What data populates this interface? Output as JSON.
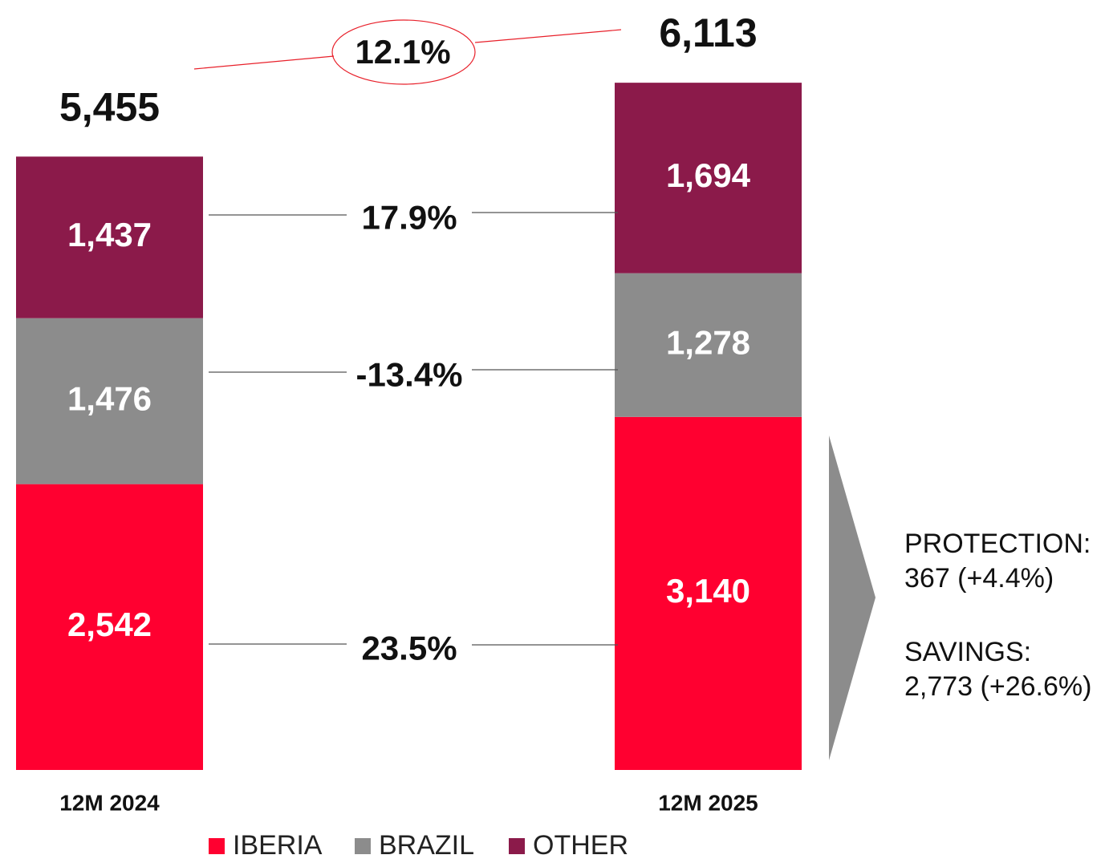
{
  "chart_data": {
    "type": "stacked_bar",
    "categories": [
      "12M 2024",
      "12M 2025"
    ],
    "series": [
      {
        "name": "IBERIA",
        "color": "#ff0030",
        "values": [
          2542,
          3140
        ],
        "value_labels": [
          "2,542",
          "3,140"
        ]
      },
      {
        "name": "BRAZIL",
        "color": "#8c8c8c",
        "values": [
          1476,
          1278
        ],
        "value_labels": [
          "1,476",
          "1,278"
        ]
      },
      {
        "name": "OTHER",
        "color": "#8b1a4a",
        "values": [
          1437,
          1694
        ],
        "value_labels": [
          "1,437",
          "1,694"
        ]
      }
    ],
    "totals": [
      5455,
      6113
    ],
    "total_labels": [
      "5,455",
      "6,113"
    ],
    "total_growth": "12.1%",
    "series_growth": [
      "23.5%",
      "-13.4%",
      "17.9%"
    ],
    "side_note": [
      "PROTECTION:",
      "367 (+4.4%)",
      "SAVINGS:",
      "2,773 (+26.6%)"
    ],
    "legend": "bottom"
  }
}
